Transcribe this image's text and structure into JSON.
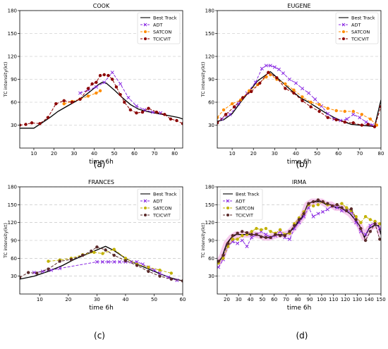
{
  "figure": {
    "panel_labels": [
      "(a)",
      "(b)",
      "(c)",
      "(d)"
    ]
  },
  "colors": {
    "best_track": "#000000",
    "adt": "#8a2be2",
    "satcon": "#ff8c00",
    "tcicvit": "#8b0000",
    "irma_satcon": "#c2b200",
    "irma_tcicvit": "#5a2a2a",
    "irma_band": "#f2b7e6"
  },
  "chart_data": [
    {
      "type": "line",
      "title": "COOK",
      "xlabel": "time 6h",
      "ylabel": "TC intensity(kt)",
      "xlim": [
        3,
        84
      ],
      "ylim": [
        0,
        180
      ],
      "xticks": [
        10,
        20,
        30,
        40,
        50,
        60,
        70,
        80
      ],
      "yticks": [
        30,
        60,
        90,
        120,
        150,
        180
      ],
      "grid": "horizontal dashed",
      "legend": "top-right",
      "panel_label": "(a)",
      "series": [
        {
          "name": "Best Track",
          "marker": "none",
          "dash": "solid",
          "color": "#000000",
          "x": [
            3,
            10,
            14,
            18,
            22,
            26,
            30,
            34,
            38,
            42,
            44,
            46,
            50,
            54,
            58,
            62,
            66,
            70,
            74,
            78,
            82,
            84
          ],
          "y": [
            26,
            26,
            33,
            40,
            48,
            54,
            60,
            66,
            74,
            83,
            86,
            85,
            76,
            66,
            57,
            51,
            48,
            46,
            44,
            42,
            40,
            38
          ]
        },
        {
          "name": "ADT",
          "marker": "x",
          "dash": "dashed",
          "color": "#8a2be2",
          "x": [
            33,
            37,
            41,
            45,
            49,
            53,
            57,
            61,
            65,
            69,
            73
          ],
          "y": [
            72,
            76,
            80,
            86,
            99,
            84,
            66,
            55,
            50,
            47,
            46
          ]
        },
        {
          "name": "SATCON",
          "marker": "o",
          "dash": "dashed",
          "color": "#ff8c00",
          "x": [
            25,
            29,
            33,
            37,
            41,
            43
          ],
          "y": [
            58,
            61,
            64,
            68,
            72,
            75
          ]
        },
        {
          "name": "TCICVIT",
          "marker": "o",
          "dash": "dashed",
          "color": "#8b0000",
          "x": [
            3,
            6,
            9,
            13,
            17,
            21,
            25,
            29,
            33,
            37,
            39,
            41,
            43,
            45,
            47,
            49,
            51,
            53,
            55,
            58,
            61,
            64,
            67,
            71,
            75,
            78,
            81,
            84
          ],
          "y": [
            30,
            31,
            33,
            32,
            40,
            58,
            62,
            60,
            64,
            78,
            84,
            86,
            95,
            96,
            95,
            90,
            80,
            70,
            60,
            50,
            46,
            47,
            52,
            47,
            44,
            38,
            36,
            32
          ]
        }
      ]
    },
    {
      "type": "line",
      "title": "EUGENE",
      "xlabel": "time 6h",
      "ylabel": "TC intensity(kt)",
      "xlim": [
        3,
        80
      ],
      "ylim": [
        0,
        180
      ],
      "xticks": [
        10,
        20,
        30,
        40,
        50,
        60,
        70,
        80
      ],
      "yticks": [
        30,
        60,
        90,
        120,
        150,
        180
      ],
      "grid": "horizontal dashed",
      "legend": "top-right",
      "panel_label": "(b)",
      "series": [
        {
          "name": "Best Track",
          "marker": "none",
          "dash": "solid",
          "color": "#000000",
          "x": [
            3,
            6,
            10,
            14,
            18,
            22,
            26,
            28,
            30,
            34,
            38,
            42,
            46,
            50,
            54,
            58,
            62,
            66,
            70,
            74,
            77,
            80
          ],
          "y": [
            35,
            37,
            45,
            60,
            74,
            88,
            96,
            100,
            95,
            85,
            75,
            66,
            60,
            53,
            46,
            40,
            35,
            31,
            30,
            29,
            28,
            63
          ]
        },
        {
          "name": "ADT",
          "marker": "x",
          "dash": "dashed",
          "color": "#8a2be2",
          "x": [
            5,
            9,
            13,
            17,
            21,
            24,
            26,
            28,
            30,
            32,
            34,
            37,
            40,
            43,
            46,
            49,
            52,
            55,
            58,
            61,
            64,
            67,
            70,
            73,
            76
          ],
          "y": [
            38,
            44,
            58,
            72,
            86,
            104,
            108,
            108,
            106,
            103,
            98,
            90,
            85,
            78,
            72,
            64,
            55,
            45,
            38,
            36,
            38,
            44,
            40,
            34,
            30
          ]
        },
        {
          "name": "SATCON",
          "marker": "o",
          "dash": "dashed",
          "color": "#ff8c00",
          "x": [
            3,
            6,
            10,
            14,
            18,
            22,
            26,
            28,
            31,
            35,
            39,
            43,
            47,
            51,
            55,
            59,
            63,
            67,
            71,
            75,
            78
          ],
          "y": [
            40,
            50,
            58,
            63,
            75,
            83,
            93,
            96,
            90,
            84,
            76,
            67,
            60,
            57,
            52,
            49,
            48,
            48,
            44,
            38,
            30
          ]
        },
        {
          "name": "TCICVIT",
          "marker": "o",
          "dash": "dashed",
          "color": "#8b0000",
          "x": [
            3,
            7,
            11,
            15,
            19,
            23,
            27,
            31,
            35,
            39,
            43,
            47,
            51,
            55,
            59,
            63,
            67,
            71,
            74,
            77,
            80
          ],
          "y": [
            33,
            44,
            54,
            66,
            74,
            85,
            99,
            92,
            78,
            72,
            62,
            54,
            48,
            40,
            37,
            34,
            33,
            30,
            31,
            28,
            54
          ]
        }
      ]
    },
    {
      "type": "line",
      "title": "FRANCES",
      "xlabel": "time 6h",
      "ylabel": "TC intensity(kt)",
      "xlim": [
        3,
        60
      ],
      "ylim": [
        0,
        180
      ],
      "xticks": [
        10,
        20,
        30,
        40,
        50,
        60
      ],
      "yticks": [
        30,
        60,
        90,
        120,
        150,
        180
      ],
      "grid": "horizontal dashed",
      "legend": "top-right",
      "panel_label": "(c)",
      "series": [
        {
          "name": "Best Track",
          "marker": "none",
          "dash": "solid",
          "color": "#000000",
          "x": [
            3,
            8,
            13,
            18,
            22,
            26,
            30,
            33,
            36,
            40,
            44,
            48,
            52,
            56,
            60
          ],
          "y": [
            25,
            30,
            38,
            48,
            58,
            66,
            74,
            80,
            73,
            60,
            50,
            42,
            34,
            27,
            22
          ]
        },
        {
          "name": "ADT",
          "marker": "x",
          "dash": "dashed",
          "color": "#8a2be2",
          "x": [
            8,
            11,
            14,
            17,
            30,
            32,
            34,
            36,
            38,
            40,
            42,
            44,
            46,
            48,
            50,
            52,
            55,
            58
          ],
          "y": [
            36,
            38,
            40,
            43,
            54,
            54,
            54,
            54,
            54,
            54,
            54,
            54,
            50,
            45,
            40,
            35,
            28,
            23
          ]
        },
        {
          "name": "SATCON",
          "marker": "o",
          "dash": "dashed",
          "color": "#c2b200",
          "x": [
            13,
            17,
            21,
            25,
            29,
            32,
            36,
            40,
            44,
            48,
            52,
            56
          ],
          "y": [
            55,
            57,
            60,
            66,
            70,
            68,
            75,
            60,
            50,
            45,
            40,
            35
          ]
        },
        {
          "name": "TCICVIT",
          "marker": "o",
          "dash": "dashed",
          "color": "#5a2a2a",
          "x": [
            3,
            6,
            9,
            13,
            17,
            21,
            25,
            28,
            30,
            33,
            36,
            40,
            44,
            48,
            52,
            56,
            60
          ],
          "y": [
            28,
            36,
            35,
            42,
            55,
            58,
            65,
            72,
            79,
            74,
            65,
            56,
            48,
            38,
            30,
            25,
            22
          ]
        }
      ]
    },
    {
      "type": "line",
      "title": "IRMA",
      "xlabel": "time 6h",
      "ylabel": "TC intensity(kt)",
      "xlim": [
        12,
        150
      ],
      "ylim": [
        0,
        180
      ],
      "xticks": [
        20,
        30,
        40,
        50,
        60,
        70,
        80,
        90,
        100,
        110,
        120,
        130,
        140,
        150
      ],
      "yticks": [
        30,
        60,
        90,
        120,
        150,
        180
      ],
      "grid": "horizontal dashed",
      "legend": "top-left",
      "panel_label": "(d)",
      "series": [
        {
          "name": "Best Track",
          "marker": "none",
          "dash": "solid",
          "color": "#000000",
          "x": [
            12,
            16,
            20,
            24,
            28,
            32,
            36,
            40,
            44,
            48,
            52,
            56,
            60,
            64,
            68,
            72,
            76,
            80,
            84,
            88,
            92,
            96,
            100,
            104,
            108,
            112,
            116,
            120,
            124,
            128,
            132,
            136,
            140,
            144,
            148,
            150
          ],
          "y": [
            50,
            62,
            85,
            95,
            100,
            100,
            100,
            100,
            100,
            98,
            95,
            95,
            98,
            100,
            100,
            102,
            110,
            120,
            130,
            150,
            155,
            155,
            155,
            150,
            150,
            145,
            145,
            140,
            135,
            125,
            115,
            95,
            110,
            115,
            115,
            100
          ]
        },
        {
          "name": "ADT",
          "marker": "x",
          "dash": "dashed",
          "color": "#8a2be2",
          "x": [
            13,
            17,
            21,
            25,
            29,
            33,
            37,
            41,
            45,
            49,
            53,
            57,
            61,
            65,
            69,
            73,
            77,
            81,
            85,
            89,
            93,
            97,
            101,
            105,
            109,
            113,
            117,
            121,
            125,
            129,
            133,
            137,
            141,
            145,
            149
          ],
          "y": [
            45,
            58,
            80,
            88,
            85,
            90,
            80,
            95,
            100,
            105,
            100,
            95,
            98,
            105,
            95,
            92,
            110,
            120,
            130,
            145,
            130,
            135,
            138,
            142,
            148,
            145,
            140,
            140,
            138,
            120,
            105,
            100,
            115,
            120,
            110
          ]
        },
        {
          "name": "SATCON",
          "marker": "o",
          "dash": "dashed",
          "color": "#c2b200",
          "x": [
            13,
            17,
            21,
            25,
            29,
            33,
            37,
            41,
            45,
            49,
            53,
            57,
            61,
            65,
            69,
            73,
            77,
            81,
            85,
            89,
            93,
            97,
            101,
            105,
            109,
            113,
            117,
            121,
            125,
            129,
            133,
            137,
            141,
            145,
            149
          ],
          "y": [
            52,
            60,
            80,
            92,
            92,
            98,
            100,
            105,
            110,
            108,
            110,
            105,
            102,
            108,
            100,
            102,
            118,
            128,
            138,
            150,
            148,
            150,
            155,
            150,
            148,
            150,
            152,
            145,
            140,
            130,
            120,
            130,
            125,
            122,
            118
          ]
        },
        {
          "name": "TCICVIT",
          "marker": "o",
          "dash": "dashed",
          "color": "#5a2a2a",
          "x": [
            13,
            17,
            21,
            25,
            29,
            33,
            37,
            41,
            45,
            49,
            53,
            57,
            61,
            65,
            69,
            73,
            77,
            81,
            85,
            89,
            93,
            97,
            101,
            105,
            109,
            113,
            117,
            121,
            125,
            129,
            133,
            137,
            141,
            145,
            149
          ],
          "y": [
            55,
            65,
            85,
            98,
            102,
            105,
            103,
            100,
            100,
            96,
            95,
            95,
            100,
            98,
            98,
            105,
            115,
            125,
            135,
            152,
            155,
            158,
            155,
            152,
            148,
            150,
            145,
            140,
            143,
            125,
            110,
            90,
            105,
            118,
            92
          ]
        }
      ]
    }
  ]
}
